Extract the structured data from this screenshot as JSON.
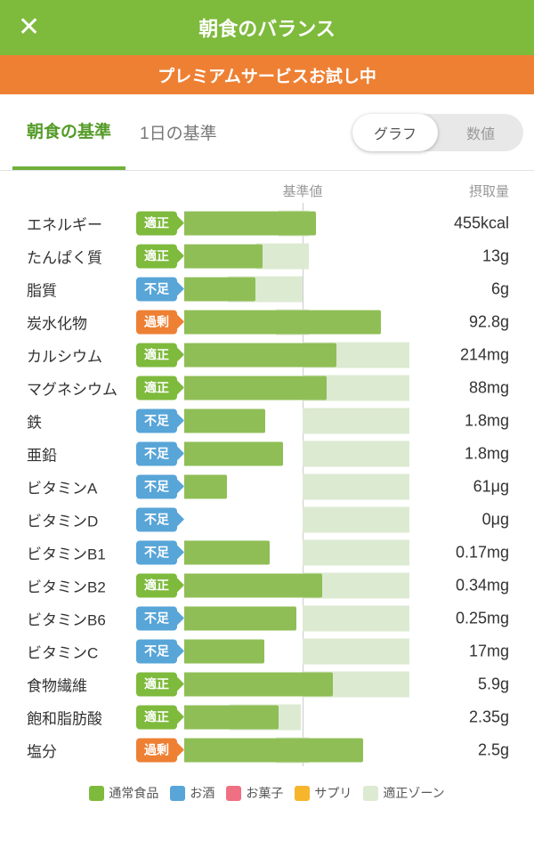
{
  "header": {
    "title": "朝食のバランス",
    "close_icon": "✕"
  },
  "banner": {
    "text": "プレミアムサービスお試し中"
  },
  "tabs": {
    "breakfast": "朝食の基準",
    "day": "1日の基準"
  },
  "toggle": {
    "graph": "グラフ",
    "numeric": "数値"
  },
  "chart": {
    "col_standard": "基準値",
    "col_intake": "摂取量",
    "rows": [
      {
        "label": "エネルギー",
        "status": "適正",
        "status_type": "good",
        "value": "455kcal",
        "bar_end": 355,
        "zone_start": 313,
        "zone_end": 347
      },
      {
        "label": "たんぱく質",
        "status": "適正",
        "status_type": "good",
        "value": "13g",
        "bar_end": 295,
        "zone_start": 288,
        "zone_end": 347
      },
      {
        "label": "脂質",
        "status": "不足",
        "status_type": "low",
        "value": "6g",
        "bar_end": 287,
        "zone_start": 256,
        "zone_end": 340
      },
      {
        "label": "炭水化物",
        "status": "過剰",
        "status_type": "over",
        "value": "92.8g",
        "bar_end": 428,
        "zone_start": 310,
        "zone_end": 347
      },
      {
        "label": "カルシウム",
        "status": "適正",
        "status_type": "good",
        "value": "214mg",
        "bar_end": 378,
        "zone_start": 340,
        "zone_end": 460
      },
      {
        "label": "マグネシウム",
        "status": "適正",
        "status_type": "good",
        "value": "88mg",
        "bar_end": 367,
        "zone_start": 340,
        "zone_end": 460
      },
      {
        "label": "鉄",
        "status": "不足",
        "status_type": "low",
        "value": "1.8mg",
        "bar_end": 298,
        "zone_start": 340,
        "zone_end": 460
      },
      {
        "label": "亜鉛",
        "status": "不足",
        "status_type": "low",
        "value": "1.8mg",
        "bar_end": 318,
        "zone_start": 340,
        "zone_end": 460
      },
      {
        "label": "ビタミンA",
        "status": "不足",
        "status_type": "low",
        "value": "61μg",
        "bar_end": 255,
        "zone_start": 340,
        "zone_end": 460
      },
      {
        "label": "ビタミンD",
        "status": "不足",
        "status_type": "low",
        "value": "0μg",
        "bar_end": 207,
        "zone_start": 340,
        "zone_end": 460
      },
      {
        "label": "ビタミンB1",
        "status": "不足",
        "status_type": "low",
        "value": "0.17mg",
        "bar_end": 303,
        "zone_start": 340,
        "zone_end": 460
      },
      {
        "label": "ビタミンB2",
        "status": "適正",
        "status_type": "good",
        "value": "0.34mg",
        "bar_end": 362,
        "zone_start": 340,
        "zone_end": 460
      },
      {
        "label": "ビタミンB6",
        "status": "不足",
        "status_type": "low",
        "value": "0.25mg",
        "bar_end": 333,
        "zone_start": 340,
        "zone_end": 460
      },
      {
        "label": "ビタミンC",
        "status": "不足",
        "status_type": "low",
        "value": "17mg",
        "bar_end": 297,
        "zone_start": 340,
        "zone_end": 460
      },
      {
        "label": "食物繊維",
        "status": "適正",
        "status_type": "good",
        "value": "5.9g",
        "bar_end": 374,
        "zone_start": 340,
        "zone_end": 460
      },
      {
        "label": "飽和脂肪酸",
        "status": "適正",
        "status_type": "good",
        "value": "2.35g",
        "bar_end": 313,
        "zone_start": 258,
        "zone_end": 338
      },
      {
        "label": "塩分",
        "status": "過剰",
        "status_type": "over",
        "value": "2.5g",
        "bar_end": 408,
        "zone_start": 310,
        "zone_end": 347
      }
    ]
  },
  "legend": [
    {
      "label": "通常食品",
      "color": "#7eba3c"
    },
    {
      "label": "お酒",
      "color": "#58a5d8"
    },
    {
      "label": "お菓子",
      "color": "#ef7082"
    },
    {
      "label": "サプリ",
      "color": "#f7b52c"
    },
    {
      "label": "適正ゾーン",
      "color": "#dcead2"
    }
  ],
  "colors": {
    "header_green": "#7eba3c",
    "banner_orange": "#ee8034",
    "status_good": "#7eba3c",
    "status_low": "#58a5d8",
    "status_over": "#ee8034",
    "bar_green": "#8fbe56",
    "zone_light_green": "#dcead2"
  }
}
